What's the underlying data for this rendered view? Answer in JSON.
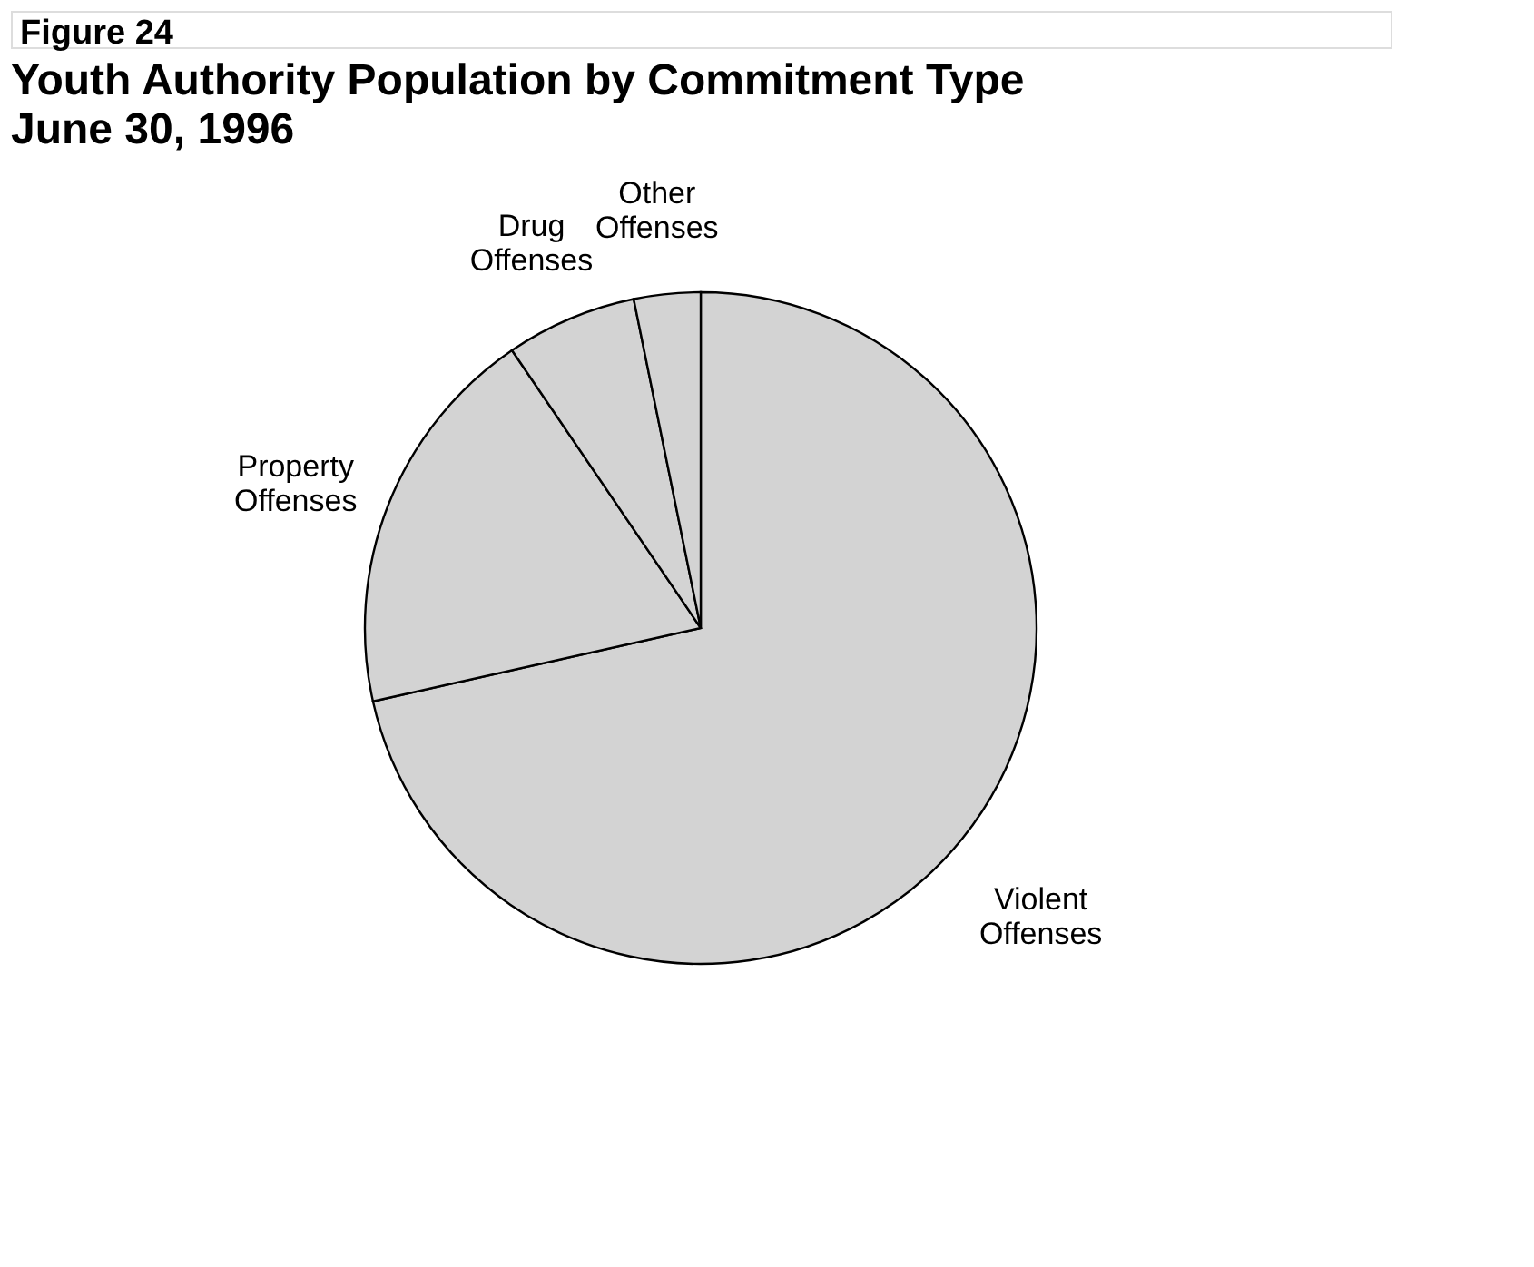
{
  "chart_data": {
    "type": "pie",
    "title": "Youth Authority Population by Commitment Type",
    "subtitle": "June 30, 1996",
    "annotations": [
      "Figure 24"
    ],
    "categories": [
      "Violent Offenses",
      "Property Offenses",
      "Drug Offenses",
      "Other Offenses"
    ],
    "values": [
      71.5,
      19,
      6.3,
      3.2
    ],
    "colors": [
      "#d3d3d3",
      "#d3d3d3",
      "#d3d3d3",
      "#d3d3d3"
    ],
    "legend": false
  }
}
